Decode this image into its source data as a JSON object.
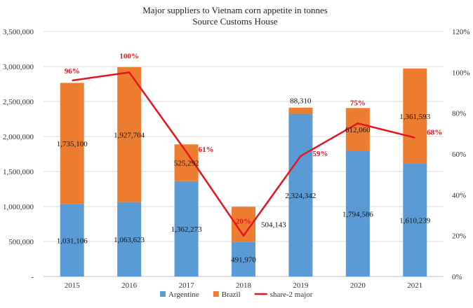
{
  "chart_data": {
    "type": "bar",
    "stacked": true,
    "title": "Major suppliers to Vietnam corn appetite in tonnes",
    "subtitle": "Source Customs House",
    "categories": [
      "2015",
      "2016",
      "2017",
      "2018",
      "2019",
      "2020",
      "2021"
    ],
    "series": [
      {
        "name": "Argentine",
        "type": "bar",
        "axis": "left",
        "color": "#5b9bd5",
        "values": [
          1031106,
          1063623,
          1362273,
          491970,
          2324342,
          1794586,
          1610239
        ],
        "labels": [
          "1,031,106",
          "1,063,623",
          "1,362,273",
          "491,970",
          "2,324,342",
          "1,794,586",
          "1,610,239"
        ]
      },
      {
        "name": "Brazil",
        "type": "bar",
        "axis": "left",
        "color": "#ed7d31",
        "values": [
          1735100,
          1927704,
          525292,
          504143,
          88310,
          612060,
          1361593
        ],
        "labels": [
          "1,735,100",
          "1,927,704",
          "525,292",
          "504,143",
          "88,310",
          "612,060",
          "1,361,593"
        ]
      },
      {
        "name": "share-2 major",
        "type": "line",
        "axis": "right",
        "color": "#e8131b",
        "values": [
          96,
          100,
          61,
          20,
          59,
          75,
          68
        ],
        "labels": [
          "96%",
          "100%",
          "61%",
          "20%",
          "59%",
          "75%",
          "68%"
        ]
      }
    ],
    "y_left": {
      "min": 0,
      "max": 3500000,
      "step": 500000,
      "ticks": [
        "-",
        "500,000",
        "1,000,000",
        "1,500,000",
        "2,000,000",
        "2,500,000",
        "3,000,000",
        "3,500,000"
      ]
    },
    "y_right": {
      "min": 0,
      "max": 120,
      "step": 20,
      "ticks": [
        "0%",
        "20%",
        "40%",
        "60%",
        "80%",
        "100%",
        "120%"
      ]
    },
    "grid": true,
    "legend": "bottom"
  }
}
